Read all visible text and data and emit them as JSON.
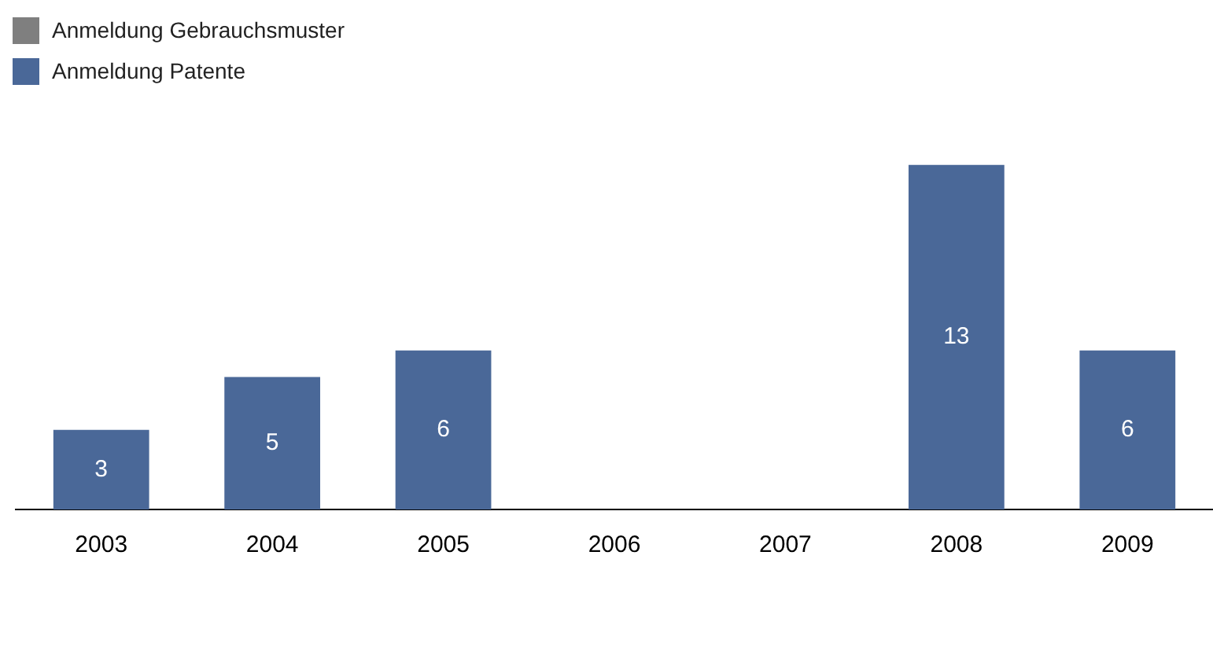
{
  "chart_data": {
    "type": "bar",
    "stacked": true,
    "legend": "top left",
    "grid": false,
    "categories": [
      "2003",
      "2004",
      "2005",
      "2006",
      "2007",
      "2008",
      "2009"
    ],
    "series": [
      {
        "name": "Anmeldung Gebrauchsmuster",
        "color": "#7f7f7f",
        "values": [
          0,
          0,
          0,
          0,
          0,
          0,
          0
        ]
      },
      {
        "name": "Anmeldung Patente",
        "color": "#4a6898",
        "values": [
          3,
          5,
          6,
          0,
          0,
          13,
          6
        ],
        "value_labels": [
          "3",
          "5",
          "6",
          null,
          null,
          "13",
          "6"
        ]
      }
    ]
  }
}
